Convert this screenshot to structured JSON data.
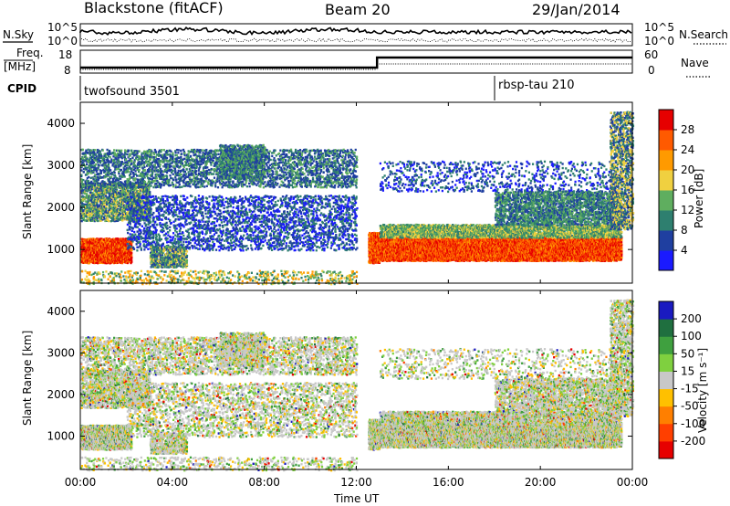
{
  "header": {
    "station": "Blackstone (fitACF)",
    "beam": "Beam 20",
    "date": "29/Jan/2014"
  },
  "strip": {
    "nsky_label": "N.Sky",
    "nsearch_label": "N.Search",
    "left_top": "10^5",
    "left_bottom": "10^0",
    "right_top": "10^5",
    "right_bottom": "10^0",
    "freq_label": "Freq.",
    "freq_unit": "[MHz]",
    "freq_top": "18",
    "freq_bottom": "8",
    "nave_label": "Nave",
    "nave_top": "60",
    "nave_bottom": "0",
    "cpid_label": "CPID",
    "cpid_1": "twofsound 3501",
    "cpid_2": "rbsp-tau 210"
  },
  "chart_data": [
    {
      "type": "heatmap",
      "panel": "power",
      "ylabel": "Slant Range [km]",
      "yticks": [
        "1000",
        "2000",
        "3000",
        "4000"
      ],
      "ylim": [
        200,
        4500
      ],
      "xlim": [
        0,
        24
      ],
      "colorbar": {
        "label": "Power [dB]",
        "ticks": [
          "4",
          "8",
          "12",
          "16",
          "20",
          "24",
          "28"
        ],
        "colors": [
          "#1a1aff",
          "#1f3fa0",
          "#2e7f6f",
          "#5fae5f",
          "#f0d040",
          "#ff9a00",
          "#ff5a00",
          "#e60000"
        ]
      }
    },
    {
      "type": "heatmap",
      "panel": "velocity",
      "ylabel": "Slant Range [km]",
      "xlabel": "Time UT",
      "yticks": [
        "1000",
        "2000",
        "3000",
        "4000"
      ],
      "xticks": [
        "00:00",
        "04:00",
        "08:00",
        "12:00",
        "16:00",
        "20:00",
        "00:00"
      ],
      "ylim": [
        200,
        4500
      ],
      "xlim": [
        0,
        24
      ],
      "colorbar": {
        "label": "Velocity [m s⁻¹]",
        "ticks": [
          "200",
          "100",
          "50",
          "15",
          "-15",
          "-50",
          "-100",
          "-200"
        ],
        "colors": [
          "#1a1ac0",
          "#1f6f3f",
          "#3fa03f",
          "#7fd03f",
          "#c8c8c8",
          "#ffc000",
          "#ff7f00",
          "#ff3f00",
          "#e60000"
        ]
      }
    }
  ]
}
